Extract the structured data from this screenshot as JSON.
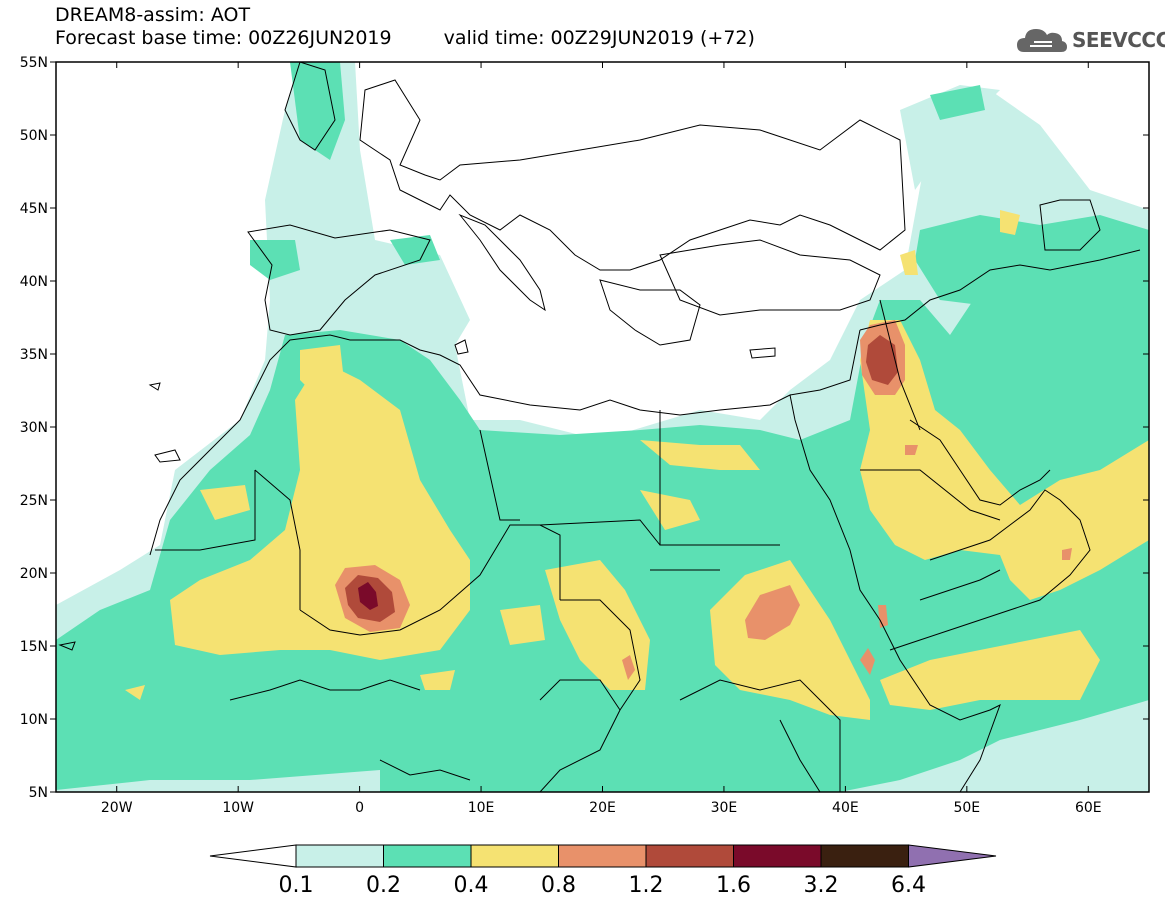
{
  "title": {
    "line1": "DREAM8-assim: AOT",
    "base_time": "Forecast base time: 00Z26JUN2019",
    "valid_time": "valid time: 00Z29JUN2019 (+72)"
  },
  "logo": {
    "text": "SEEVCCC",
    "icon": "cloud-icon"
  },
  "axes": {
    "lat_ticks": [
      "55N",
      "50N",
      "45N",
      "40N",
      "35N",
      "30N",
      "25N",
      "20N",
      "15N",
      "10N",
      "5N"
    ],
    "lat_values": [
      55,
      50,
      45,
      40,
      35,
      30,
      25,
      20,
      15,
      10,
      5
    ],
    "lon_ticks": [
      "20W",
      "10W",
      "0",
      "10E",
      "20E",
      "30E",
      "40E",
      "50E",
      "60E"
    ],
    "lon_values": [
      -20,
      -10,
      0,
      10,
      20,
      30,
      40,
      50,
      60
    ],
    "lon_range": [
      -25,
      65
    ],
    "lat_range": [
      5,
      55
    ]
  },
  "colorbar": {
    "labels": [
      "0.1",
      "0.2",
      "0.4",
      "0.8",
      "1.2",
      "1.6",
      "3.2",
      "6.4"
    ],
    "colors": [
      "#c8f0e8",
      "#5ce0b4",
      "#f5e272",
      "#e8916a",
      "#b04a3a",
      "#7a0a2a",
      "#3a2010",
      "#9070b0"
    ]
  },
  "levels": {
    "l01": "#c8f0e8",
    "l02": "#5ce0b4",
    "l04": "#f5e272",
    "l08": "#e8916a",
    "l12": "#b04a3a",
    "l16": "#7a0a2a"
  }
}
